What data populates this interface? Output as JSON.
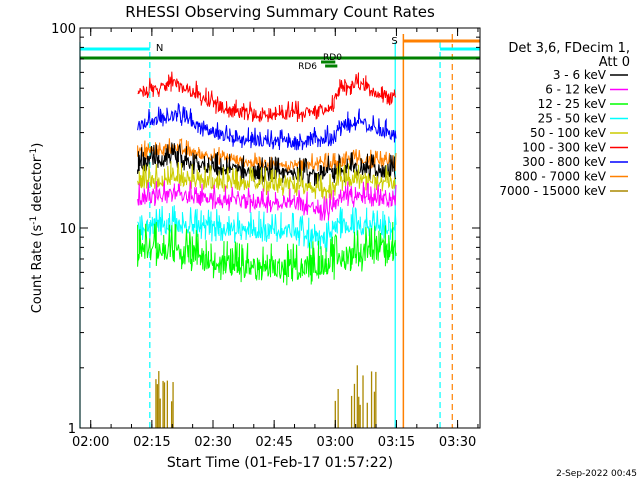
{
  "chart_data": {
    "type": "line",
    "title": "RHESSI Observing Summary Count Rates",
    "xlabel": "Start Time (01-Feb-17 01:57:22)",
    "ylabel_main": "Count Rate (s",
    "ylabel_sup1": "-1",
    "ylabel_mid": " detector",
    "ylabel_sup2": "-1",
    "ylabel_end": ")",
    "yscale": "log",
    "ylim": [
      1,
      100
    ],
    "xlim_minutes": [
      117.37,
      215.5
    ],
    "x_ticks": [
      {
        "t": 120,
        "label": "02:00"
      },
      {
        "t": 135,
        "label": "02:15"
      },
      {
        "t": 150,
        "label": "02:30"
      },
      {
        "t": 165,
        "label": "02:45"
      },
      {
        "t": 180,
        "label": "03:00"
      },
      {
        "t": 195,
        "label": "03:15"
      },
      {
        "t": 210,
        "label": "03:30"
      }
    ],
    "y_ticks": [
      {
        "v": 1,
        "label": "1"
      },
      {
        "v": 10,
        "label": "10"
      },
      {
        "v": 100,
        "label": "100"
      }
    ],
    "legend": {
      "header": [
        "Det 3,6, FDecim 1,",
        "Att 0"
      ],
      "entries": [
        {
          "label": "3 - 6 keV",
          "color": "#000000"
        },
        {
          "label": "6 - 12 keV",
          "color": "#ff00ff"
        },
        {
          "label": "12 - 25 keV",
          "color": "#00ff00"
        },
        {
          "label": "25 - 50 keV",
          "color": "#00ffff"
        },
        {
          "label": "50 - 100 keV",
          "color": "#cccc00"
        },
        {
          "label": "100 - 300 keV",
          "color": "#ff0000"
        },
        {
          "label": "300 - 800 keV",
          "color": "#0000ff"
        },
        {
          "label": "800 - 7000 keV",
          "color": "#ff8000"
        },
        {
          "label": "7000 - 15000 keV",
          "color": "#aa8800"
        }
      ]
    },
    "series": [
      {
        "name": "100 - 300 keV",
        "color": "#ff0000",
        "t_start": 131.5,
        "t_end": 195.0,
        "base": 48,
        "noise": 0.07,
        "profile": [
          [
            131.5,
            46
          ],
          [
            136,
            50
          ],
          [
            140,
            53
          ],
          [
            145,
            48
          ],
          [
            150,
            42
          ],
          [
            155,
            38
          ],
          [
            165,
            37
          ],
          [
            175,
            38
          ],
          [
            180,
            40
          ],
          [
            181,
            50
          ],
          [
            186,
            52
          ],
          [
            190,
            47
          ],
          [
            195,
            45
          ]
        ]
      },
      {
        "name": "300 - 800 keV",
        "color": "#0000ff",
        "t_start": 131.5,
        "t_end": 195.0,
        "noise": 0.07,
        "profile": [
          [
            131.5,
            33
          ],
          [
            136,
            35
          ],
          [
            140,
            37
          ],
          [
            145,
            34
          ],
          [
            150,
            30
          ],
          [
            155,
            28
          ],
          [
            165,
            27
          ],
          [
            175,
            27.5
          ],
          [
            180,
            28.5
          ],
          [
            181,
            32
          ],
          [
            186,
            34
          ],
          [
            190,
            31
          ],
          [
            195,
            29
          ]
        ]
      },
      {
        "name": "800 - 7000 keV",
        "color": "#ff8000",
        "t_start": 131.5,
        "t_end": 195.0,
        "noise": 0.06,
        "profile": [
          [
            131.5,
            24
          ],
          [
            140,
            25
          ],
          [
            150,
            23
          ],
          [
            160,
            21
          ],
          [
            170,
            20.5
          ],
          [
            180,
            21
          ],
          [
            185,
            22
          ],
          [
            195,
            21
          ]
        ]
      },
      {
        "name": "3 - 6 keV",
        "color": "#000000",
        "t_start": 131.5,
        "t_end": 195.0,
        "noise": 0.09,
        "profile": [
          [
            131.5,
            21
          ],
          [
            140,
            22
          ],
          [
            150,
            20
          ],
          [
            160,
            19
          ],
          [
            170,
            18.5
          ],
          [
            180,
            19
          ],
          [
            185,
            20
          ],
          [
            195,
            19
          ]
        ]
      },
      {
        "name": "50 - 100 keV",
        "color": "#cccc00",
        "t_start": 131.5,
        "t_end": 195.0,
        "noise": 0.09,
        "profile": [
          [
            131.5,
            17
          ],
          [
            140,
            18
          ],
          [
            150,
            17
          ],
          [
            160,
            16.5
          ],
          [
            170,
            16.5
          ],
          [
            178,
            15
          ],
          [
            181,
            17.5
          ],
          [
            195,
            17
          ]
        ]
      },
      {
        "name": "6 - 12 keV",
        "color": "#ff00ff",
        "t_start": 131.5,
        "t_end": 195.0,
        "noise": 0.08,
        "profile": [
          [
            131.5,
            14
          ],
          [
            140,
            15
          ],
          [
            150,
            14
          ],
          [
            160,
            13.5
          ],
          [
            170,
            13.5
          ],
          [
            178,
            12
          ],
          [
            181,
            14.5
          ],
          [
            195,
            14
          ]
        ]
      },
      {
        "name": "25 - 50 keV",
        "color": "#00ffff",
        "t_start": 131.5,
        "t_end": 195.0,
        "noise": 0.1,
        "profile": [
          [
            131.5,
            10
          ],
          [
            140,
            10.5
          ],
          [
            150,
            10
          ],
          [
            160,
            9.8
          ],
          [
            170,
            9.6
          ],
          [
            178,
            8.8
          ],
          [
            181,
            10.3
          ],
          [
            195,
            10
          ]
        ]
      },
      {
        "name": "12 - 25 keV",
        "color": "#00ff00",
        "t_start": 131.5,
        "t_end": 195.0,
        "noise": 0.14,
        "profile": [
          [
            131.5,
            8
          ],
          [
            140,
            7.8
          ],
          [
            150,
            6.8
          ],
          [
            160,
            6.2
          ],
          [
            170,
            6.3
          ],
          [
            180,
            6.8
          ],
          [
            186,
            7.5
          ],
          [
            195,
            8
          ]
        ]
      }
    ],
    "spikes": {
      "name": "7000 - 15000 keV",
      "color": "#aa8800",
      "bursts": [
        [
          136,
          141
        ],
        [
          180,
          181
        ],
        [
          184,
          190
        ]
      ]
    },
    "flags": {
      "night_color": "#00ffff",
      "saa_color": "#ff8000",
      "decim_color": "#008000",
      "night_label": "N",
      "saa_label": "S",
      "rd0_label": "RD0",
      "rd6_label": "RD6",
      "night_bar": [
        [
          117.37,
          134.5
        ],
        [
          205.7,
          215.5
        ]
      ],
      "saa_bar": [
        196.7,
        215.5
      ],
      "decim_bar": [
        117.37,
        215.5
      ],
      "rd0_bar": [
        176.5,
        180.0
      ],
      "rd6_bar": [
        177.5,
        180.5
      ],
      "night_edges_dashed": [
        134.5,
        205.7
      ],
      "night_edges_solid": [
        117.37,
        194.7
      ],
      "saa_edges": [
        196.7,
        208.7
      ]
    },
    "timestamp": "2-Sep-2022 00:45"
  }
}
